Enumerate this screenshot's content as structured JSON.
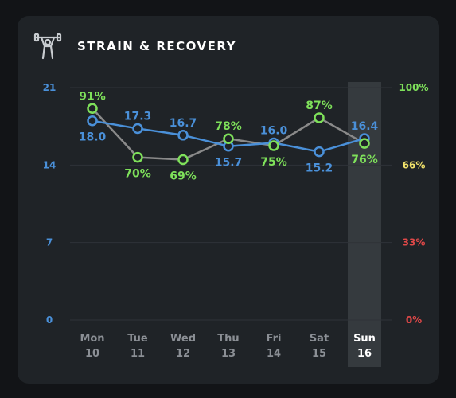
{
  "header": {
    "title": "STRAIN & RECOVERY",
    "icon": "weightlifter-icon"
  },
  "colors": {
    "strain": "#4a90d9",
    "recovery": "#7ee05a",
    "recovery_line": "#8a8a8a",
    "tick_green": "#7ee05a",
    "tick_yellow": "#f2e36b",
    "tick_red": "#e04848",
    "highlight": "#3a3e43"
  },
  "chart_data": {
    "type": "line",
    "categories": [
      {
        "day": "Mon",
        "date": "10"
      },
      {
        "day": "Tue",
        "date": "11"
      },
      {
        "day": "Wed",
        "date": "12"
      },
      {
        "day": "Thu",
        "date": "13"
      },
      {
        "day": "Fri",
        "date": "14"
      },
      {
        "day": "Sat",
        "date": "15"
      },
      {
        "day": "Sun",
        "date": "16"
      }
    ],
    "highlighted_index": 6,
    "left_axis": {
      "ylim": [
        0,
        21
      ],
      "ticks": [
        "0",
        "7",
        "14",
        "21"
      ]
    },
    "right_axis": {
      "ylim": [
        0,
        100
      ],
      "ticks": [
        "0%",
        "33%",
        "66%",
        "100%"
      ]
    },
    "grid": true,
    "series": [
      {
        "key": "strain",
        "values": [
          18.0,
          17.3,
          16.7,
          15.7,
          16.0,
          15.2,
          16.4
        ],
        "labels": [
          "18.0",
          "17.3",
          "16.7",
          "15.7",
          "16.0",
          "15.2",
          "16.4"
        ]
      },
      {
        "key": "recovery",
        "values": [
          91,
          70,
          69,
          78,
          75,
          87,
          76
        ],
        "labels": [
          "91%",
          "70%",
          "69%",
          "78%",
          "75%",
          "87%",
          "76%"
        ]
      }
    ]
  }
}
